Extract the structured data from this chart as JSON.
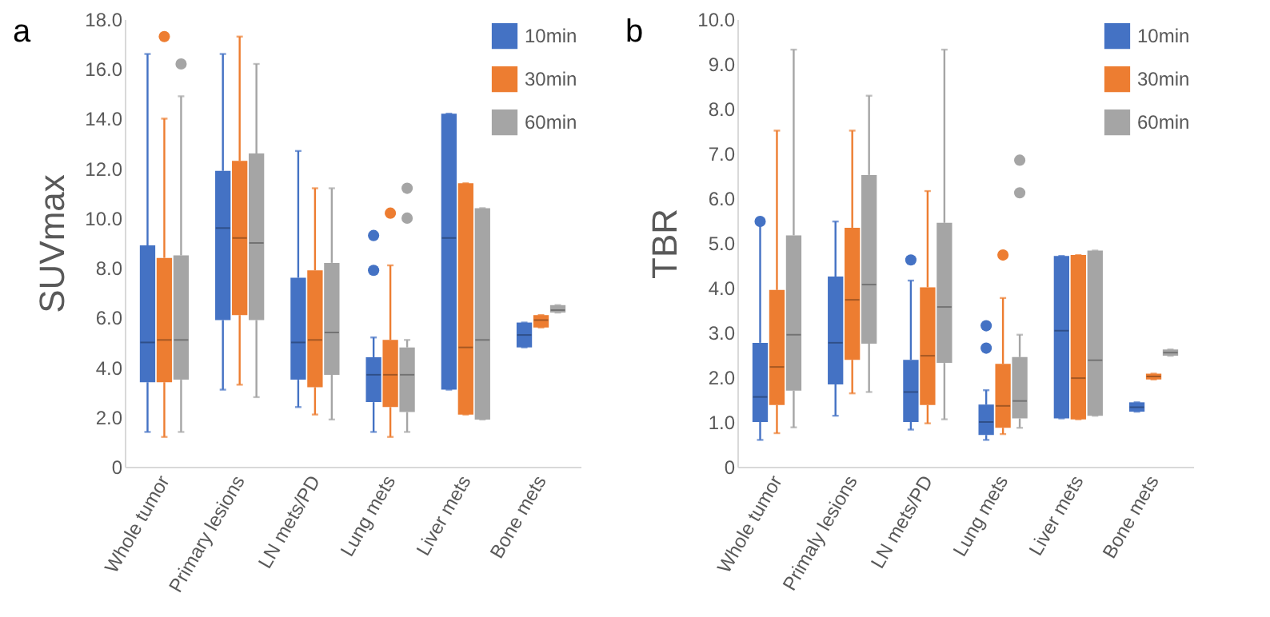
{
  "chart_data": [
    {
      "type": "box",
      "title": "a",
      "ylabel": "SUVmax",
      "categories": [
        "Whole tumor",
        "Primary lesions",
        "LN mets/PD",
        "Lung mets",
        "Liver mets",
        "Bone mets"
      ],
      "ylim": [
        0,
        18
      ],
      "yticks": [
        0,
        {
          "value": 2,
          "label": "2.0"
        },
        {
          "value": 4,
          "label": "4.0"
        },
        {
          "value": 6,
          "label": "6.0"
        },
        {
          "value": 8,
          "label": "8.0"
        },
        {
          "value": 10,
          "label": "10.0"
        },
        {
          "value": 12,
          "label": "12.0"
        },
        {
          "value": 14,
          "label": "14.0"
        },
        {
          "value": 16,
          "label": "16.0"
        },
        {
          "value": 18,
          "label": "18.0"
        }
      ],
      "grid": false,
      "legend": "top right",
      "series": [
        {
          "name": "10min",
          "color": "#4472c4",
          "boxes": [
            {
              "low": 1.4,
              "q1": 3.4,
              "median": 5.0,
              "q3": 8.9,
              "high": 16.6
            },
            {
              "low": 3.1,
              "q1": 5.9,
              "median": 9.6,
              "q3": 11.9,
              "high": 16.6
            },
            {
              "low": 2.4,
              "q1": 3.5,
              "median": 5.0,
              "q3": 7.6,
              "high": 12.7
            },
            {
              "low": 1.4,
              "q1": 2.6,
              "median": 3.7,
              "q3": 4.4,
              "high": 5.2,
              "outliers": [
                9.3,
                7.9
              ]
            },
            {
              "low": 3.1,
              "q1": 3.1,
              "median": 9.2,
              "q3": 14.2,
              "high": 14.2
            },
            {
              "low": 4.8,
              "q1": 4.8,
              "median": 5.3,
              "q3": 5.8,
              "high": 5.8
            }
          ]
        },
        {
          "name": "30min",
          "color": "#ed7d31",
          "boxes": [
            {
              "low": 1.2,
              "q1": 3.4,
              "median": 5.1,
              "q3": 8.4,
              "high": 14.0,
              "outliers": [
                17.3
              ]
            },
            {
              "low": 3.3,
              "q1": 6.1,
              "median": 9.2,
              "q3": 12.3,
              "high": 17.3
            },
            {
              "low": 2.1,
              "q1": 3.2,
              "median": 5.1,
              "q3": 7.9,
              "high": 11.2
            },
            {
              "low": 1.2,
              "q1": 2.4,
              "median": 3.7,
              "q3": 5.1,
              "high": 8.1,
              "outliers": [
                10.2
              ]
            },
            {
              "low": 2.1,
              "q1": 2.1,
              "median": 4.8,
              "q3": 11.4,
              "high": 11.4
            },
            {
              "low": 5.6,
              "q1": 5.6,
              "median": 5.9,
              "q3": 6.1,
              "high": 6.1
            }
          ]
        },
        {
          "name": "60min",
          "color": "#a5a5a5",
          "boxes": [
            {
              "low": 1.4,
              "q1": 3.5,
              "median": 5.1,
              "q3": 8.5,
              "high": 14.9,
              "outliers": [
                16.2
              ]
            },
            {
              "low": 2.8,
              "q1": 5.9,
              "median": 9.0,
              "q3": 12.6,
              "high": 16.2
            },
            {
              "low": 1.9,
              "q1": 3.7,
              "median": 5.4,
              "q3": 8.2,
              "high": 11.2
            },
            {
              "low": 1.4,
              "q1": 2.2,
              "median": 3.7,
              "q3": 4.8,
              "high": 5.1,
              "outliers": [
                11.2,
                10.0
              ]
            },
            {
              "low": 1.9,
              "q1": 1.9,
              "median": 5.1,
              "q3": 10.4,
              "high": 10.4
            },
            {
              "low": 6.2,
              "q1": 6.2,
              "median": 6.3,
              "q3": 6.5,
              "high": 6.5
            }
          ]
        }
      ]
    },
    {
      "type": "box",
      "title": "b",
      "ylabel": "TBR",
      "categories": [
        "Whole tumor",
        "Primaly lesions",
        "LN mets/PD",
        "Lung mets",
        "Liver mets",
        "Bone mets"
      ],
      "ylim": [
        0,
        10
      ],
      "yticks": [
        0,
        {
          "value": 1,
          "label": "1.0"
        },
        {
          "value": 2,
          "label": "2.0"
        },
        {
          "value": 3,
          "label": "3.0"
        },
        {
          "value": 4,
          "label": "4.0"
        },
        {
          "value": 5,
          "label": "5.0"
        },
        {
          "value": 6,
          "label": "6.0"
        },
        {
          "value": 7,
          "label": "7.0"
        },
        {
          "value": 8,
          "label": "8.0"
        },
        {
          "value": 9,
          "label": "9.0"
        },
        {
          "value": 10,
          "label": "10.0"
        }
      ],
      "grid": false,
      "legend": "top right",
      "series": [
        {
          "name": "10min",
          "color": "#4472c4",
          "boxes": [
            {
              "low": 0.6,
              "q1": 1.0,
              "median": 1.56,
              "q3": 2.77,
              "high": 5.4,
              "outliers": [
                5.48
              ]
            },
            {
              "low": 1.14,
              "q1": 1.84,
              "median": 2.77,
              "q3": 4.25,
              "high": 5.48
            },
            {
              "low": 0.83,
              "q1": 1.0,
              "median": 1.67,
              "q3": 2.39,
              "high": 4.16,
              "outliers": [
                4.62
              ]
            },
            {
              "low": 0.6,
              "q1": 0.71,
              "median": 1.0,
              "q3": 1.39,
              "high": 1.71,
              "outliers": [
                3.15,
                2.65
              ]
            },
            {
              "low": 1.08,
              "q1": 1.08,
              "median": 3.04,
              "q3": 4.71,
              "high": 4.71
            },
            {
              "low": 1.23,
              "q1": 1.23,
              "median": 1.33,
              "q3": 1.44,
              "high": 1.44
            }
          ]
        },
        {
          "name": "30min",
          "color": "#ed7d31",
          "boxes": [
            {
              "low": 0.75,
              "q1": 1.38,
              "median": 2.23,
              "q3": 3.95,
              "high": 7.51
            },
            {
              "low": 1.64,
              "q1": 2.39,
              "median": 3.73,
              "q3": 5.34,
              "high": 7.51
            },
            {
              "low": 0.97,
              "q1": 1.38,
              "median": 2.48,
              "q3": 4.01,
              "high": 6.16
            },
            {
              "low": 0.73,
              "q1": 0.87,
              "median": 1.36,
              "q3": 2.3,
              "high": 3.77,
              "outliers": [
                4.73
              ]
            },
            {
              "low": 1.06,
              "q1": 1.06,
              "median": 1.98,
              "q3": 4.73,
              "high": 4.73
            },
            {
              "low": 1.95,
              "q1": 1.95,
              "median": 2.02,
              "q3": 2.08,
              "high": 2.08
            }
          ]
        },
        {
          "name": "60min",
          "color": "#a5a5a5",
          "boxes": [
            {
              "low": 0.88,
              "q1": 1.7,
              "median": 2.95,
              "q3": 5.17,
              "high": 9.32
            },
            {
              "low": 1.67,
              "q1": 2.75,
              "median": 4.07,
              "q3": 6.52,
              "high": 8.29
            },
            {
              "low": 1.06,
              "q1": 2.32,
              "median": 3.57,
              "q3": 5.45,
              "high": 9.32
            },
            {
              "low": 0.87,
              "q1": 1.08,
              "median": 1.47,
              "q3": 2.45,
              "high": 2.95,
              "outliers": [
                6.85,
                6.12
              ]
            },
            {
              "low": 1.14,
              "q1": 1.14,
              "median": 2.38,
              "q3": 4.83,
              "high": 4.83
            },
            {
              "low": 2.48,
              "q1": 2.48,
              "median": 2.55,
              "q3": 2.62,
              "high": 2.62
            }
          ]
        }
      ]
    }
  ]
}
